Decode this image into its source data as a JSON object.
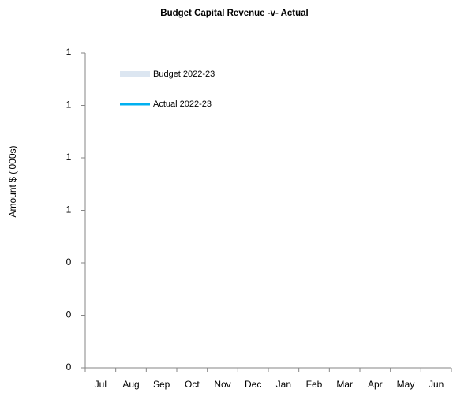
{
  "chart_data": {
    "type": "bar_line",
    "title": "Budget Capital Revenue -v- Actual",
    "y_label": "Amount $ ('000s)",
    "categories": [
      "Jul",
      "Aug",
      "Sep",
      "Oct",
      "Nov",
      "Dec",
      "Jan",
      "Feb",
      "Mar",
      "Apr",
      "May",
      "Jun"
    ],
    "series": [
      {
        "name": "Budget 2022-23",
        "kind": "bar",
        "color": "#dce6f1",
        "values": [
          null,
          null,
          null,
          null,
          null,
          null,
          null,
          null,
          null,
          null,
          null,
          null
        ]
      },
      {
        "name": "Actual 2022-23",
        "kind": "line",
        "color": "#00b0f0",
        "values": [
          null,
          null,
          null,
          null,
          null,
          null,
          null,
          null,
          null,
          null,
          null,
          null
        ]
      }
    ],
    "ylim": [
      0,
      1.2
    ],
    "yticks": [
      0,
      {
        "value": 0.2,
        "label": "0"
      },
      {
        "value": 0.4,
        "label": "0"
      },
      {
        "value": 0.6,
        "label": "1"
      },
      {
        "value": 0.8,
        "label": "1"
      },
      {
        "value": 1.0,
        "label": "1"
      },
      {
        "value": 1.2,
        "label": "1"
      }
    ],
    "grid": false,
    "legend": "top-left"
  }
}
